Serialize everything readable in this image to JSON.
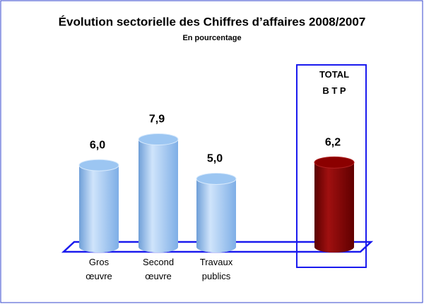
{
  "chart_data": {
    "type": "bar",
    "title": "Évolution sectorielle des Chiffres d’affaires 2008/2007",
    "subtitle": "En pourcentage",
    "categories": [
      "Gros\nœuvre",
      "Second\nœuvre",
      "Travaux\npublics",
      "TOTAL\nB T P"
    ],
    "values": [
      6.0,
      7.9,
      5.0,
      6.2
    ],
    "value_labels": [
      "6,0",
      "7,9",
      "5,0",
      "6,2"
    ],
    "colors": [
      "#9cc6f2",
      "#9cc6f2",
      "#9cc6f2",
      "#8b0000"
    ]
  }
}
